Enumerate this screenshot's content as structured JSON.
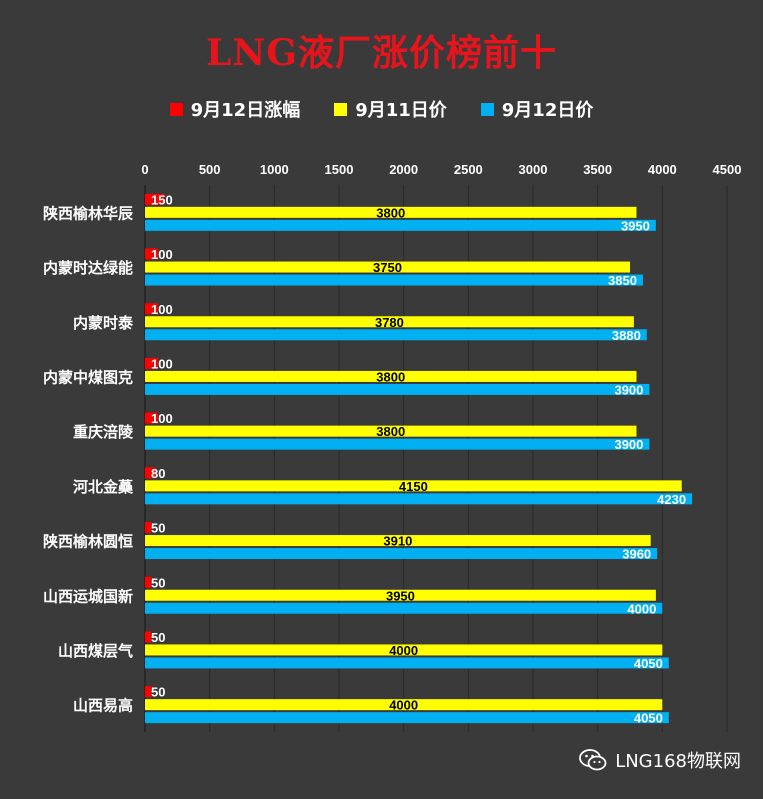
{
  "chart_data": {
    "type": "bar",
    "orientation": "horizontal",
    "title": "LNG液厂涨价榜前十",
    "categories": [
      "陕西榆林华辰",
      "内蒙时达绿能",
      "内蒙时泰",
      "内蒙中煤图克",
      "重庆涪陵",
      "河北金蘽",
      "陕西榆林圆恒",
      "山西运城国新",
      "山西煤层气",
      "山西易高"
    ],
    "series": [
      {
        "name": "9月12日涨幅",
        "color": "#ff0000",
        "values": [
          150,
          100,
          100,
          100,
          100,
          80,
          50,
          50,
          50,
          50
        ]
      },
      {
        "name": "9月11日价",
        "color": "#ffff00",
        "values": [
          3800,
          3750,
          3780,
          3800,
          3800,
          4150,
          3910,
          3950,
          4000,
          4000
        ]
      },
      {
        "name": "9月12日价",
        "color": "#00b0f0",
        "values": [
          3950,
          3850,
          3880,
          3900,
          3900,
          4230,
          3960,
          4000,
          4050,
          4050
        ]
      }
    ],
    "xlim": [
      0,
      4500
    ],
    "x_ticks": [
      "0",
      "500",
      "1000",
      "1500",
      "2000",
      "2500",
      "3000",
      "3500",
      "4000",
      "4500"
    ],
    "axis_position": "top",
    "grid": true,
    "legend_placement": "top-center"
  },
  "watermark": {
    "text": "LNG168物联网",
    "icon": "wechat-icon"
  },
  "colors": {
    "background": "#3a3a3a",
    "title": "#e8141c",
    "grid": "#2a2a2a"
  }
}
